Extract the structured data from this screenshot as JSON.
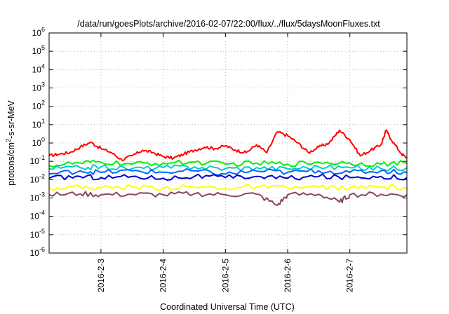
{
  "chart_data": {
    "type": "line",
    "title": "/data/run/goesPlots/archive/2016-02-07/22:00/flux/../flux/5daysMoonFluxes.txt",
    "xlabel": "Coordinated Universal Time (UTC)",
    "ylabel": {
      "main": "protons/cm",
      "sup": "2",
      "rest": "-s-sr-MeV"
    },
    "y_scale": "log",
    "ylim": [
      -6,
      6
    ],
    "y_ticks": [
      {
        "exp": -6,
        "base": "10",
        "sup": "-6"
      },
      {
        "exp": -5,
        "base": "10",
        "sup": "-5"
      },
      {
        "exp": -4,
        "base": "10",
        "sup": "-4"
      },
      {
        "exp": -3,
        "base": "10",
        "sup": "-3"
      },
      {
        "exp": -2,
        "base": "10",
        "sup": "-2"
      },
      {
        "exp": -1,
        "base": "10",
        "sup": "-1"
      },
      {
        "exp": 0,
        "base": "10",
        "sup": "0"
      },
      {
        "exp": 1,
        "base": "10",
        "sup": "1"
      },
      {
        "exp": 2,
        "base": "10",
        "sup": "2"
      },
      {
        "exp": 3,
        "base": "10",
        "sup": "3"
      },
      {
        "exp": 4,
        "base": "10",
        "sup": "4"
      },
      {
        "exp": 5,
        "base": "10",
        "sup": "5"
      },
      {
        "exp": 6,
        "base": "10",
        "sup": "6"
      }
    ],
    "x_range": [
      "2016-02-02T04:00",
      "2016-02-07T22:00"
    ],
    "x_ticks": [
      "2016-2-3",
      "2016-2-4",
      "2016-2-5",
      "2016-2-6",
      "2016-2-7"
    ],
    "x_tick_dates": [
      "2016-02-03T00:00",
      "2016-02-04T00:00",
      "2016-02-05T00:00",
      "2016-02-06T00:00",
      "2016-02-07T00:00"
    ],
    "grid": true,
    "legend": "none",
    "series": [
      {
        "color": "#ff0000",
        "points": [
          [
            "2016-02-02T04:00",
            0.2
          ],
          [
            "2016-02-02T08:00",
            0.25
          ],
          [
            "2016-02-02T12:00",
            0.3
          ],
          [
            "2016-02-02T16:00",
            0.6
          ],
          [
            "2016-02-02T20:00",
            1.1
          ],
          [
            "2016-02-03T00:00",
            0.5
          ],
          [
            "2016-02-03T04:00",
            0.3
          ],
          [
            "2016-02-03T08:00",
            0.12
          ],
          [
            "2016-02-03T12:00",
            0.2
          ],
          [
            "2016-02-03T16:00",
            0.4
          ],
          [
            "2016-02-03T20:00",
            0.3
          ],
          [
            "2016-02-04T00:00",
            0.18
          ],
          [
            "2016-02-04T04:00",
            0.15
          ],
          [
            "2016-02-04T08:00",
            0.25
          ],
          [
            "2016-02-04T12:00",
            0.4
          ],
          [
            "2016-02-04T16:00",
            0.6
          ],
          [
            "2016-02-04T20:00",
            0.5
          ],
          [
            "2016-02-05T00:00",
            0.7
          ],
          [
            "2016-02-05T04:00",
            0.4
          ],
          [
            "2016-02-05T08:00",
            0.3
          ],
          [
            "2016-02-05T12:00",
            0.8
          ],
          [
            "2016-02-05T16:00",
            0.3
          ],
          [
            "2016-02-05T20:00",
            4.0
          ],
          [
            "2016-02-06T00:00",
            2.5
          ],
          [
            "2016-02-06T04:00",
            1.0
          ],
          [
            "2016-02-06T08:00",
            0.3
          ],
          [
            "2016-02-06T12:00",
            0.6
          ],
          [
            "2016-02-06T16:00",
            1.0
          ],
          [
            "2016-02-06T20:00",
            5.0
          ],
          [
            "2016-02-07T00:00",
            1.5
          ],
          [
            "2016-02-07T04:00",
            0.2
          ],
          [
            "2016-02-07T08:00",
            0.4
          ],
          [
            "2016-02-07T12:00",
            0.8
          ],
          [
            "2016-02-07T14:00",
            5.0
          ],
          [
            "2016-02-07T16:00",
            1.5
          ],
          [
            "2016-02-07T20:00",
            0.25
          ],
          [
            "2016-02-07T22:00",
            0.15
          ]
        ]
      },
      {
        "color": "#00ee00",
        "points": [
          [
            "2016-02-02T04:00",
            0.06
          ],
          [
            "2016-02-02T16:00",
            0.08
          ],
          [
            "2016-02-03T00:00",
            0.09
          ],
          [
            "2016-02-03T12:00",
            0.07
          ],
          [
            "2016-02-04T00:00",
            0.08
          ],
          [
            "2016-02-04T12:00",
            0.09
          ],
          [
            "2016-02-05T00:00",
            0.07
          ],
          [
            "2016-02-05T12:00",
            0.08
          ],
          [
            "2016-02-06T00:00",
            0.07
          ],
          [
            "2016-02-06T12:00",
            0.09
          ],
          [
            "2016-02-07T00:00",
            0.08
          ],
          [
            "2016-02-07T12:00",
            0.07
          ],
          [
            "2016-02-07T22:00",
            0.08
          ]
        ]
      },
      {
        "color": "#00cccc",
        "points": [
          [
            "2016-02-02T04:00",
            0.04
          ],
          [
            "2016-02-02T16:00",
            0.045
          ],
          [
            "2016-02-03T00:00",
            0.05
          ],
          [
            "2016-02-03T12:00",
            0.04
          ],
          [
            "2016-02-04T00:00",
            0.045
          ],
          [
            "2016-02-04T12:00",
            0.05
          ],
          [
            "2016-02-05T00:00",
            0.04
          ],
          [
            "2016-02-05T12:00",
            0.045
          ],
          [
            "2016-02-06T00:00",
            0.04
          ],
          [
            "2016-02-06T12:00",
            0.05
          ],
          [
            "2016-02-07T00:00",
            0.045
          ],
          [
            "2016-02-07T12:00",
            0.04
          ],
          [
            "2016-02-07T22:00",
            0.045
          ]
        ]
      },
      {
        "color": "#0066ff",
        "points": [
          [
            "2016-02-02T04:00",
            0.02
          ],
          [
            "2016-02-02T16:00",
            0.03
          ],
          [
            "2016-02-03T00:00",
            0.025
          ],
          [
            "2016-02-03T12:00",
            0.03
          ],
          [
            "2016-02-04T00:00",
            0.025
          ],
          [
            "2016-02-04T12:00",
            0.03
          ],
          [
            "2016-02-05T00:00",
            0.02
          ],
          [
            "2016-02-05T12:00",
            0.03
          ],
          [
            "2016-02-06T00:00",
            0.025
          ],
          [
            "2016-02-06T12:00",
            0.03
          ],
          [
            "2016-02-07T00:00",
            0.025
          ],
          [
            "2016-02-07T12:00",
            0.03
          ],
          [
            "2016-02-07T22:00",
            0.025
          ]
        ]
      },
      {
        "color": "#0000cc",
        "points": [
          [
            "2016-02-02T04:00",
            0.012
          ],
          [
            "2016-02-02T16:00",
            0.015
          ],
          [
            "2016-02-03T00:00",
            0.013
          ],
          [
            "2016-02-03T12:00",
            0.015
          ],
          [
            "2016-02-04T00:00",
            0.012
          ],
          [
            "2016-02-04T12:00",
            0.015
          ],
          [
            "2016-02-05T00:00",
            0.013
          ],
          [
            "2016-02-05T12:00",
            0.015
          ],
          [
            "2016-02-06T00:00",
            0.012
          ],
          [
            "2016-02-06T12:00",
            0.015
          ],
          [
            "2016-02-07T00:00",
            0.013
          ],
          [
            "2016-02-07T12:00",
            0.015
          ],
          [
            "2016-02-07T22:00",
            0.013
          ]
        ]
      },
      {
        "color": "#ffff00",
        "points": [
          [
            "2016-02-02T04:00",
            0.0035
          ],
          [
            "2016-02-02T16:00",
            0.004
          ],
          [
            "2016-02-03T00:00",
            0.0035
          ],
          [
            "2016-02-03T12:00",
            0.004
          ],
          [
            "2016-02-04T00:00",
            0.0035
          ],
          [
            "2016-02-04T12:00",
            0.004
          ],
          [
            "2016-02-05T00:00",
            0.0035
          ],
          [
            "2016-02-05T12:00",
            0.004
          ],
          [
            "2016-02-06T00:00",
            0.0035
          ],
          [
            "2016-02-06T12:00",
            0.004
          ],
          [
            "2016-02-07T00:00",
            0.0035
          ],
          [
            "2016-02-07T12:00",
            0.004
          ],
          [
            "2016-02-07T22:00",
            0.0035
          ]
        ]
      },
      {
        "color": "#884466",
        "points": [
          [
            "2016-02-02T04:00",
            0.0015
          ],
          [
            "2016-02-02T16:00",
            0.0017
          ],
          [
            "2016-02-03T00:00",
            0.0015
          ],
          [
            "2016-02-03T12:00",
            0.0016
          ],
          [
            "2016-02-04T00:00",
            0.0015
          ],
          [
            "2016-02-04T12:00",
            0.0017
          ],
          [
            "2016-02-05T00:00",
            0.0015
          ],
          [
            "2016-02-05T12:00",
            0.0016
          ],
          [
            "2016-02-05T20:00",
            0.0004
          ],
          [
            "2016-02-06T00:00",
            0.0015
          ],
          [
            "2016-02-06T12:00",
            0.0016
          ],
          [
            "2016-02-06T20:00",
            0.0006
          ],
          [
            "2016-02-07T00:00",
            0.0015
          ],
          [
            "2016-02-07T12:00",
            0.0016
          ],
          [
            "2016-02-07T22:00",
            0.0015
          ]
        ]
      }
    ]
  }
}
